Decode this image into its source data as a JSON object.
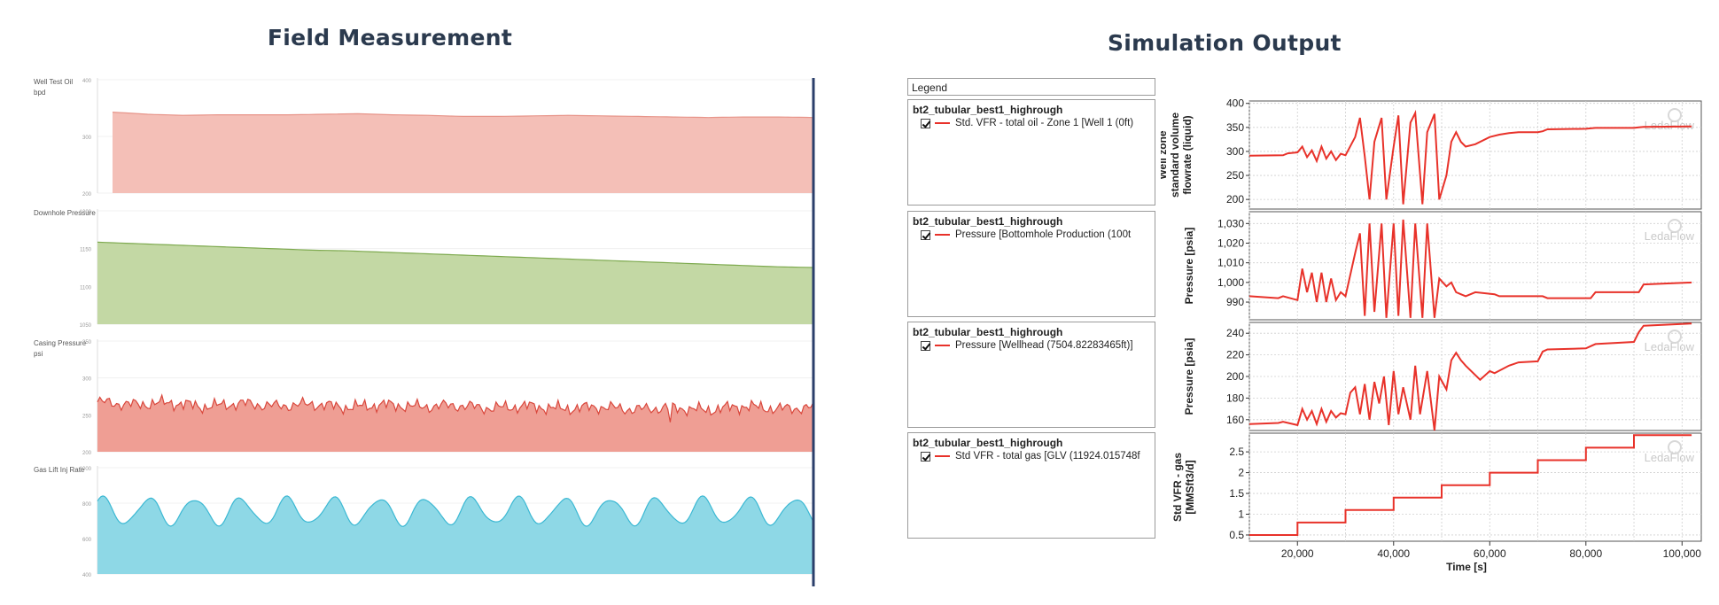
{
  "field": {
    "title": "Field Measurement",
    "panels": [
      {
        "label": "Well Test Oil\nbpd",
        "ticks": [
          "400",
          "300",
          "200"
        ],
        "color": "#f4bfb7",
        "line": "#e7958a"
      },
      {
        "label": "Downhole Pressure",
        "ticks": [
          "1200",
          "1150",
          "1100",
          "1050"
        ],
        "color": "#c3d8a4",
        "line": "#7eaa4f"
      },
      {
        "label": "Casing Pressure\npsi",
        "ticks": [
          "350",
          "300",
          "250",
          "200"
        ],
        "color": "#ef9e94",
        "line": "#d9473c"
      },
      {
        "label": "Gas Lift Inj Rate",
        "ticks": [
          "1000",
          "800",
          "600",
          "400"
        ],
        "color": "#8ed8e6",
        "line": "#3bb8d3"
      }
    ]
  },
  "simulation": {
    "title": "Simulation Output",
    "legend_header": "Legend",
    "legend": [
      {
        "case": "bt2_tubular_best1_highrough",
        "item": "Std. VFR - total oil - Zone 1 [Well 1 (0ft)"
      },
      {
        "case": "bt2_tubular_best1_highrough",
        "item": "Pressure [Bottomhole Production (100t"
      },
      {
        "case": "bt2_tubular_best1_highrough",
        "item": "Pressure [Wellhead (7504.82283465ft)]"
      },
      {
        "case": "bt2_tubular_best1_highrough",
        "item": "Std VFR - total gas [GLV (11924.015748f"
      }
    ],
    "watermark": "LedaFlow",
    "line_color": "#e8322a"
  },
  "chart_data": [
    {
      "type": "area",
      "title": "Field Measurement",
      "series": [
        {
          "name": "Well Test Oil",
          "values": [
            350,
            346,
            344,
            345,
            345,
            345,
            346,
            347,
            345,
            344,
            342,
            342,
            343,
            344,
            343,
            342,
            341,
            340,
            341,
            341,
            340
          ],
          "ylim": [
            200,
            410
          ]
        },
        {
          "name": "Downhole Pressure",
          "values": [
            1163,
            1161,
            1159,
            1157,
            1155,
            1153,
            1151,
            1150,
            1148,
            1146,
            1144,
            1142,
            1140,
            1138,
            1136,
            1134,
            1132,
            1130,
            1128,
            1126,
            1125
          ],
          "ylim": [
            1040,
            1210
          ]
        },
        {
          "name": "Casing Pressure",
          "values": [
            272,
            268,
            271,
            265,
            270,
            266,
            269,
            264,
            268,
            265,
            267,
            263,
            266,
            262,
            265,
            261,
            264,
            260,
            266,
            262,
            264
          ],
          "ylim": [
            200,
            360
          ]
        },
        {
          "name": "Gas Lift Inj Rate",
          "values": [
            800,
            760,
            840,
            750,
            830,
            770,
            850,
            760,
            820,
            780,
            840,
            770,
            830,
            760,
            840,
            780,
            850,
            770,
            830,
            760,
            800
          ],
          "ylim": [
            400,
            1060
          ]
        }
      ]
    },
    {
      "type": "line",
      "xlabel": "Time [s]",
      "xlim": [
        10000,
        104000
      ],
      "xticks": [
        20000,
        40000,
        60000,
        80000,
        100000
      ],
      "xtick_labels": [
        "20,000",
        "40,000",
        "60,000",
        "80,000",
        "100,000"
      ],
      "panels": [
        {
          "ylabel": [
            "Well zone",
            "standard volume",
            "flowrate (liquid)"
          ],
          "ylim": [
            180,
            405
          ],
          "yticks": [
            200,
            250,
            300,
            350,
            400
          ],
          "ytick_labels": [
            "200",
            "250",
            "300",
            "350",
            "400"
          ],
          "x": [
            10000,
            17000,
            18000,
            20000,
            21000,
            22000,
            23000,
            24000,
            25000,
            26000,
            27000,
            28000,
            29000,
            30000,
            32000,
            33000,
            34000,
            35000,
            36000,
            37500,
            38500,
            40000,
            41000,
            42000,
            43500,
            44500,
            46000,
            47000,
            48500,
            49500,
            51000,
            52000,
            53000,
            54000,
            55000,
            57000,
            60000,
            62000,
            64000,
            66000,
            70000,
            71000,
            72000,
            80000,
            81000,
            82000,
            90000,
            91000,
            92000,
            102000
          ],
          "y": [
            291,
            292,
            296,
            298,
            310,
            288,
            302,
            280,
            310,
            285,
            300,
            282,
            295,
            292,
            330,
            370,
            290,
            200,
            320,
            370,
            200,
            310,
            375,
            190,
            360,
            380,
            190,
            340,
            378,
            200,
            250,
            320,
            340,
            320,
            310,
            315,
            330,
            335,
            338,
            340,
            340,
            342,
            346,
            347,
            348,
            349,
            349,
            350,
            351,
            352
          ]
        },
        {
          "ylabel": [
            "Pressure [psia]"
          ],
          "ylim": [
            981,
            1036
          ],
          "yticks": [
            990,
            1000,
            1010,
            1020,
            1030
          ],
          "ytick_labels": [
            "990",
            "1,000",
            "1,010",
            "1,020",
            "1,030"
          ],
          "x": [
            10000,
            16000,
            17000,
            20000,
            21000,
            22000,
            23000,
            24000,
            25000,
            26000,
            27000,
            28000,
            29000,
            30000,
            32000,
            33000,
            34000,
            35000,
            36000,
            37500,
            38500,
            40000,
            41000,
            42000,
            43500,
            44500,
            46000,
            47000,
            48500,
            49500,
            51000,
            52000,
            53000,
            54000,
            55000,
            57000,
            61000,
            62000,
            71000,
            72000,
            81000,
            82000,
            91000,
            92000,
            102000
          ],
          "y": [
            993,
            992,
            993,
            991,
            1007,
            995,
            1005,
            990,
            1005,
            990,
            1002,
            991,
            995,
            993,
            1015,
            1025,
            983,
            1030,
            985,
            1030,
            982,
            1030,
            983,
            1032,
            982,
            1030,
            982,
            1030,
            982,
            1002,
            998,
            1000,
            995,
            994,
            993,
            995,
            994,
            993,
            993,
            992,
            992,
            995,
            995,
            999,
            1000
          ]
        },
        {
          "ylabel": [
            "Pressure [psia]"
          ],
          "ylim": [
            150,
            250
          ],
          "yticks": [
            160,
            180,
            200,
            220,
            240
          ],
          "ytick_labels": [
            "160",
            "180",
            "200",
            "220",
            "240"
          ],
          "x": [
            10000,
            16000,
            17000,
            20000,
            21000,
            22000,
            23000,
            24000,
            25000,
            26000,
            27000,
            28000,
            29000,
            30000,
            31000,
            32000,
            33000,
            34000,
            35000,
            36000,
            37000,
            38000,
            39000,
            40000,
            41000,
            42000,
            43500,
            44500,
            45500,
            47000,
            48500,
            49500,
            51000,
            52000,
            53000,
            54000,
            55000,
            58000,
            60000,
            61000,
            64000,
            66000,
            70000,
            71000,
            72000,
            80000,
            81000,
            82000,
            90000,
            91000,
            92000,
            102000
          ],
          "y": [
            156,
            157,
            158,
            155,
            170,
            160,
            168,
            156,
            170,
            158,
            168,
            162,
            166,
            165,
            185,
            190,
            165,
            193,
            160,
            195,
            175,
            200,
            155,
            205,
            165,
            190,
            160,
            210,
            165,
            205,
            150,
            200,
            188,
            215,
            222,
            215,
            210,
            197,
            205,
            203,
            210,
            213,
            214,
            223,
            225,
            226,
            228,
            230,
            232,
            241,
            247,
            249
          ]
        },
        {
          "ylabel": [
            "Std VFR - gas",
            "[MMSft3/d]"
          ],
          "ylim": [
            0.35,
            2.95
          ],
          "yticks": [
            0.5,
            1,
            1.5,
            2,
            2.5
          ],
          "ytick_labels": [
            "0.5",
            "1",
            "1.5",
            "2",
            "2.5"
          ],
          "x": [
            10000,
            20000,
            20000,
            30000,
            30000,
            40000,
            40000,
            50000,
            50000,
            60000,
            60000,
            70000,
            70000,
            80000,
            80000,
            90000,
            90000,
            102000
          ],
          "y": [
            0.5,
            0.5,
            0.8,
            0.8,
            1.1,
            1.1,
            1.4,
            1.4,
            1.7,
            1.7,
            2.0,
            2.0,
            2.3,
            2.3,
            2.6,
            2.6,
            2.9,
            2.9
          ]
        }
      ]
    }
  ]
}
